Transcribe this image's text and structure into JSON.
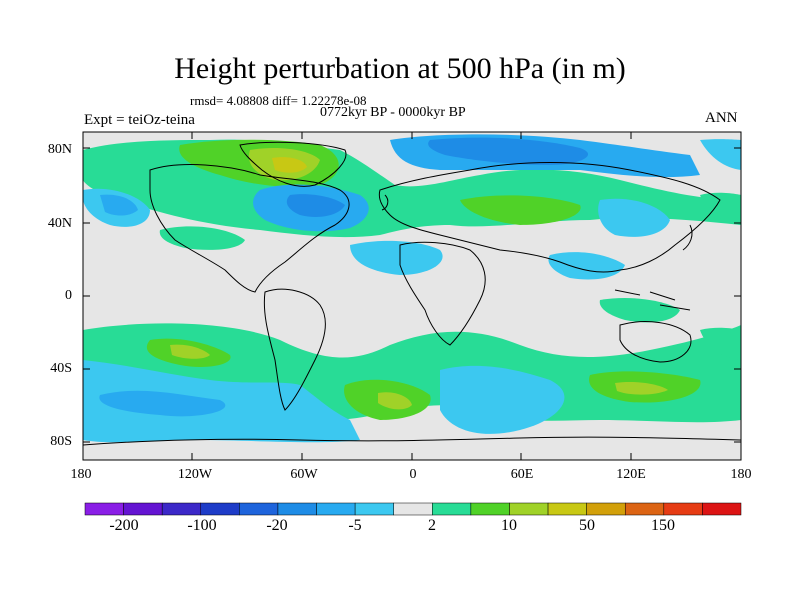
{
  "title": "Height perturbation at 500 hPa (in m)",
  "stats": "rmsd= 4.08808 diff= 1.22278e-08",
  "period": "0772kyr BP - 0000kyr BP",
  "experiment": "Expt = teiOz-teina",
  "season": "ANN",
  "lat_labels": [
    "80N",
    "40N",
    "0",
    "40S",
    "80S"
  ],
  "lon_labels": [
    "180",
    "120W",
    "60W",
    "0",
    "60E",
    "120E",
    "180"
  ],
  "colorbar": {
    "colors": [
      "#8a1ee6",
      "#6414d2",
      "#3c28c8",
      "#1e3cc8",
      "#1e64dc",
      "#1e8ce6",
      "#28aaf0",
      "#3cc8f0",
      "#e6e6e6",
      "#28dc96",
      "#50d228",
      "#a0d228",
      "#c8c814",
      "#d2a00a",
      "#dc6414",
      "#e63c14",
      "#dc1414"
    ],
    "labels": [
      "-200",
      "-100",
      "-20",
      "-5",
      "2",
      "10",
      "50",
      "150"
    ]
  },
  "palette": {
    "background_field": "#e6e6e6",
    "coastline": "#000000"
  }
}
